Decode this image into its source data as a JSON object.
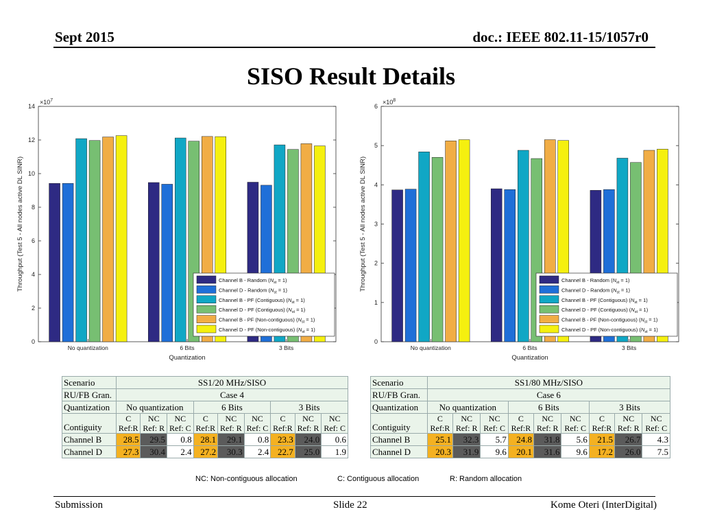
{
  "header": {
    "date": "Sept 2015",
    "doc": "doc.: IEEE 802.11-15/1057r0"
  },
  "title": "SISO Result Details",
  "colors": {
    "ch_b_random": "#2e2a83",
    "ch_d_random": "#1f6fd8",
    "ch_b_pf_c": "#10a7c5",
    "ch_d_pf_c": "#77bf72",
    "ch_b_pf_nc": "#f1ad45",
    "ch_d_pf_nc": "#f5f00f",
    "hl_yellow": "#f4b121",
    "hl_dark": "#5b5b5b",
    "table_bg": "#eaf4ea"
  },
  "chart_data": [
    {
      "type": "bar",
      "xlabel": "Quantization",
      "ylabel": "Throughput (Test 5 - All nodes active DL SINR)",
      "multiplier": "×10^7",
      "ylim": [
        0,
        14
      ],
      "yticks": [
        0,
        2,
        4,
        6,
        8,
        10,
        12,
        14
      ],
      "categories": [
        "No quantization",
        "6 Bits",
        "3 Bits"
      ],
      "legend_position": "bottom-right",
      "series": [
        {
          "name": "Channel B - Random (N_st = 1)",
          "values": [
            9.42,
            9.47,
            9.49
          ]
        },
        {
          "name": "Channel D - Random (N_st = 1)",
          "values": [
            9.42,
            9.37,
            9.31
          ]
        },
        {
          "name": "Channel B - PF (Contiguous) (N_st = 1)",
          "values": [
            12.08,
            12.12,
            11.71
          ]
        },
        {
          "name": "Channel D - PF (Contiguous) (N_st = 1)",
          "values": [
            11.97,
            11.93,
            11.44
          ]
        },
        {
          "name": "Channel B - PF (Non-contiguous) (N_st = 1)",
          "values": [
            12.18,
            12.21,
            11.78
          ]
        },
        {
          "name": "Channel D - PF (Non-contiguous) (N_st = 1)",
          "values": [
            12.26,
            12.2,
            11.65
          ]
        }
      ]
    },
    {
      "type": "bar",
      "xlabel": "Quantization",
      "ylabel": "Throughput (Test 5 - All nodes active DL SINR)",
      "multiplier": "×10^8",
      "ylim": [
        0,
        6
      ],
      "yticks": [
        0,
        1,
        2,
        3,
        4,
        5,
        6
      ],
      "categories": [
        "No quantization",
        "6 Bits",
        "3 Bits"
      ],
      "legend_position": "bottom-right",
      "series": [
        {
          "name": "Channel B - Random (N_st = 1)",
          "values": [
            3.87,
            3.9,
            3.86
          ]
        },
        {
          "name": "Channel D - Random (N_st = 1)",
          "values": [
            3.89,
            3.88,
            3.88
          ]
        },
        {
          "name": "Channel B - PF (Contiguous) (N_st = 1)",
          "values": [
            4.84,
            4.88,
            4.68
          ]
        },
        {
          "name": "Channel D - PF (Contiguous) (N_st = 1)",
          "values": [
            4.7,
            4.67,
            4.57
          ]
        },
        {
          "name": "Channel B - PF (Non-contiguous) (N_st = 1)",
          "values": [
            5.12,
            5.15,
            4.88
          ]
        },
        {
          "name": "Channel D - PF (Non-contiguous) (N_st = 1)",
          "values": [
            5.15,
            5.13,
            4.91
          ]
        }
      ]
    }
  ],
  "legend_parts": [
    {
      "pre": "Channel B - Random (",
      "post": " = 1)"
    },
    {
      "pre": "Channel D - Random (",
      "post": " = 1)"
    },
    {
      "pre": "Channel B - PF (Contiguous) (",
      "post": " = 1)"
    },
    {
      "pre": "Channel D - PF (Contiguous) (",
      "post": " = 1)"
    },
    {
      "pre": "Channel B - PF (Non-contiguous) (",
      "post": " = 1)"
    },
    {
      "pre": "Channel D - PF (Non-contiguous) (",
      "post": " = 1)"
    }
  ],
  "legend_sym": "N",
  "legend_sub": "st",
  "tables": {
    "left": {
      "scenario_label": "Scenario",
      "scenario": "SS1/20 MHz/SISO",
      "gran_label": "RU/FB Gran.",
      "gran": "Case 4",
      "quant_label": "Quantization",
      "quant": [
        "No quantization",
        "6 Bits",
        "3 Bits"
      ],
      "contig_label": "Contiguity",
      "sub_top": [
        "C",
        "NC",
        "NC",
        "C",
        "NC",
        "NC",
        "C",
        "NC",
        "NC"
      ],
      "sub_bot": [
        "Ref:R",
        "Ref: R",
        "Ref: C",
        "Ref:R",
        "Ref: R",
        "Ref: C",
        "Ref:R",
        "Ref: R",
        "Ref: C"
      ],
      "rows": [
        {
          "label": "Channel B",
          "values": [
            "28.5",
            "29.5",
            "0.8",
            "28.1",
            "29.1",
            "0.8",
            "23.3",
            "24.0",
            "0.6"
          ]
        },
        {
          "label": "Channel D",
          "values": [
            "27.3",
            "30.4",
            "2.4",
            "27.2",
            "30.3",
            "2.4",
            "22.7",
            "25.0",
            "1.9"
          ]
        }
      ]
    },
    "right": {
      "scenario_label": "Scenario",
      "scenario": "SS1/80 MHz/SISO",
      "gran_label": "RU/FB Gran.",
      "gran": "Case 6",
      "quant_label": "Quantization",
      "quant": [
        "No quantization",
        "6 Bits",
        "3 Bits"
      ],
      "contig_label": "Contiguity",
      "sub_top": [
        "C",
        "NC",
        "NC",
        "C",
        "NC",
        "NC",
        "C",
        "NC",
        "NC"
      ],
      "sub_bot": [
        "Ref:R",
        "Ref: R",
        "Ref: C",
        "Ref:R",
        "Ref: R",
        "Ref: C",
        "Ref:R",
        "Ref: R",
        "Ref: C"
      ],
      "rows": [
        {
          "label": "Channel B",
          "values": [
            "25.1",
            "32.3",
            "5.7",
            "24.8",
            "31.8",
            "5.6",
            "21.5",
            "26.7",
            "4.3"
          ]
        },
        {
          "label": "Channel D",
          "values": [
            "20.3",
            "31.9",
            "9.6",
            "20.1",
            "31.6",
            "9.6",
            "17.2",
            "26.0",
            "7.5"
          ]
        }
      ]
    }
  },
  "notes": {
    "nc": "NC: Non-contiguous allocation",
    "c": "C: Contiguous allocation",
    "r": "R: Random allocation"
  },
  "footer": {
    "left": "Submission",
    "mid": "Slide 22",
    "right": "Kome Oteri (InterDigital)"
  }
}
